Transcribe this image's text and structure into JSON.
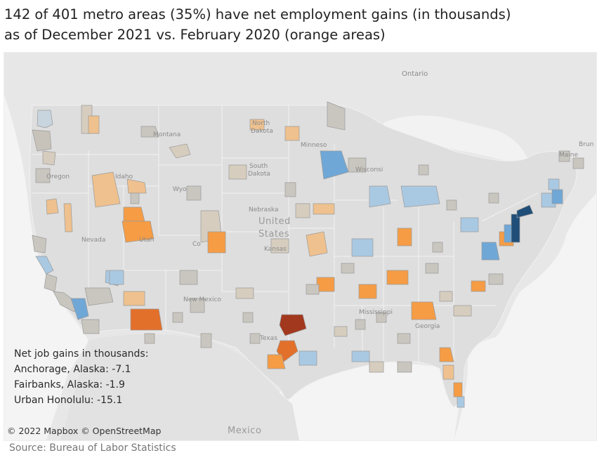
{
  "title": {
    "line1": "142 of 401 metro areas  (35%) have net employment gains (in thousands)",
    "line2": "as of December 2021 vs. February 2020 (orange areas)"
  },
  "map": {
    "labels": {
      "ontario": "Ontario",
      "north_dakota_1": "North",
      "north_dakota_2": "Dakota",
      "south_dakota_1": "South",
      "south_dakota_2": "Dakota",
      "montana": "Montana",
      "oregon": "Oregon",
      "idaho": "Idaho",
      "wyoming": "Wyo",
      "nevada": "Nevada",
      "utah": "Utah",
      "colorado": "Co",
      "nebraska": "Nebraska",
      "kansas": "Kansas",
      "new_mexico": "New Mexico",
      "texas": "Texas",
      "minnesota": "Minneso",
      "wisconsin": "Wisconsi",
      "mississippi": "Mississippi",
      "georgia": "Georgia",
      "maine": "Maine",
      "brunswick": "Brun",
      "united_states_1": "United",
      "united_states_2": "States",
      "mexico": "Mexico"
    },
    "colors": {
      "land": "#dcdcdc",
      "water": "#f3f3f3",
      "neutral": "#c9c6bf",
      "light_orange": "#f2c28c",
      "orange": "#f59c45",
      "dark_orange": "#e3702a",
      "brick": "#a2381e",
      "light_blue": "#a9c9e3",
      "blue": "#6fa7d6",
      "dark_blue": "#1f4e79"
    }
  },
  "legend": {
    "heading": "Net job gains in thousands:",
    "items": [
      "Anchorage, Alaska: -7.1",
      "Fairbanks, Alaska: -1.9",
      "Urban Honolulu: -15.1"
    ]
  },
  "attribution": "© 2022 Mapbox © OpenStreetMap",
  "source": "Source: Bureau of Labor Statistics"
}
